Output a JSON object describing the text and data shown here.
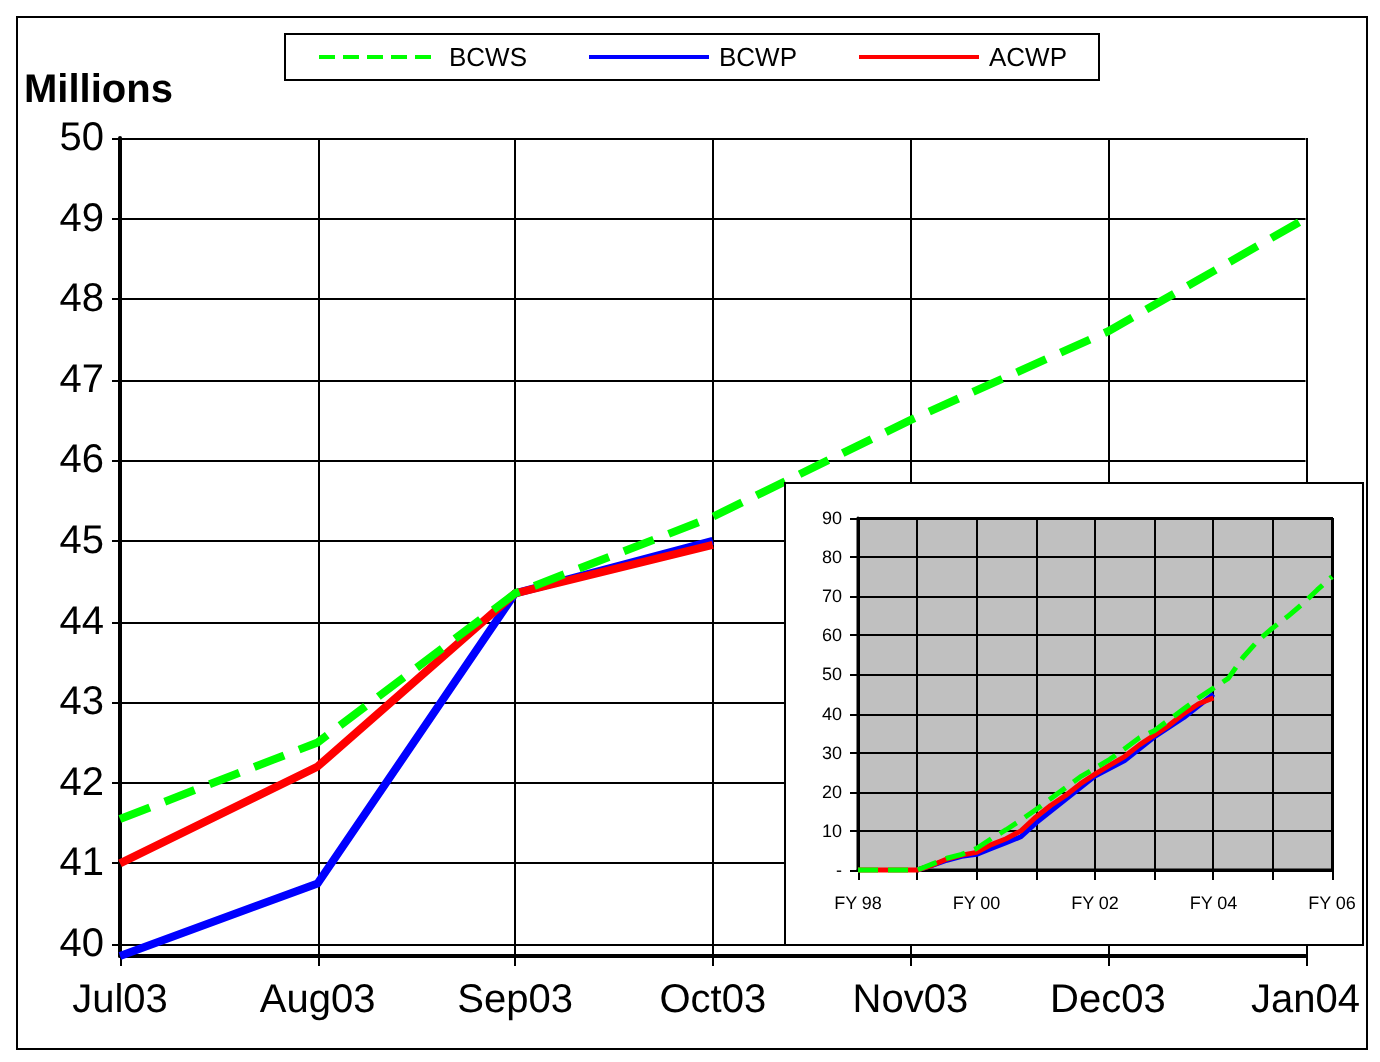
{
  "chart_data": [
    {
      "type": "line",
      "ylabel": "Millions",
      "categories": [
        "Jul03",
        "Aug03",
        "Sep03",
        "Oct03",
        "Nov03",
        "Dec03",
        "Jan04"
      ],
      "ylim": [
        39.85,
        50
      ],
      "yticks": [
        40,
        41,
        42,
        43,
        44,
        45,
        46,
        47,
        48,
        49,
        50
      ],
      "grid": true,
      "legend": "top",
      "marker": "none",
      "series": [
        {
          "name": "BCWS",
          "color": "#00ff00",
          "line_style": "dashed",
          "values": [
            41.55,
            42.5,
            44.35,
            45.3,
            46.5,
            47.6,
            49.0
          ]
        },
        {
          "name": "BCWP",
          "color": "#0000ff",
          "line_style": "solid",
          "values": [
            39.85,
            40.75,
            44.35,
            45.0,
            null,
            null,
            null
          ]
        },
        {
          "name": "ACWP",
          "color": "#ff0000",
          "line_style": "solid",
          "values": [
            41.0,
            42.2,
            44.35,
            44.95,
            null,
            null,
            null
          ]
        }
      ]
    },
    {
      "type": "line",
      "categories": [
        "FY 98",
        null,
        null,
        null,
        null,
        null,
        null,
        null,
        "FY 00",
        null,
        null,
        null,
        null,
        null,
        null,
        null,
        "FY 02",
        null,
        null,
        null,
        null,
        null,
        null,
        null,
        "FY 04",
        null,
        null,
        null,
        null,
        null,
        null,
        null,
        "FY 06"
      ],
      "ylim": [
        0,
        90
      ],
      "yticks": [
        {
          "value": 0,
          "label": "-"
        },
        10,
        20,
        30,
        40,
        50,
        60,
        70,
        80,
        90
      ],
      "grid": true,
      "marker": "none",
      "series": [
        {
          "color": "#00ff00",
          "line_style": "dashed",
          "values": [
            0,
            0,
            0,
            0,
            0,
            1.5,
            3,
            4,
            5.5,
            8,
            10.3,
            12.8,
            15.4,
            18.2,
            21,
            23.8,
            26,
            28.3,
            31,
            33.8,
            35.6,
            38.4,
            41.2,
            44,
            46.5,
            49,
            54.4,
            58.6,
            61.9,
            64.8,
            68,
            71.6,
            75
          ]
        },
        {
          "color": "#0000ff",
          "line_style": "solid",
          "values": [
            null,
            null,
            null,
            null,
            0,
            1.2,
            2.5,
            3.5,
            4,
            5.5,
            7,
            8.5,
            12,
            15,
            18,
            21,
            24,
            26,
            28,
            31,
            34,
            36.5,
            39,
            42,
            45,
            null,
            null,
            null,
            null,
            null,
            null,
            null,
            null
          ]
        },
        {
          "color": "#ff0000",
          "line_style": "solid",
          "values": [
            0,
            0,
            0,
            0,
            0,
            1.2,
            2.8,
            3.8,
            4.5,
            6.5,
            8,
            10,
            13.5,
            16.5,
            19,
            22,
            24.5,
            26.8,
            29,
            32,
            34.5,
            37,
            40,
            42.5,
            44,
            null,
            null,
            null,
            null,
            null,
            null,
            null,
            null
          ]
        }
      ]
    }
  ]
}
